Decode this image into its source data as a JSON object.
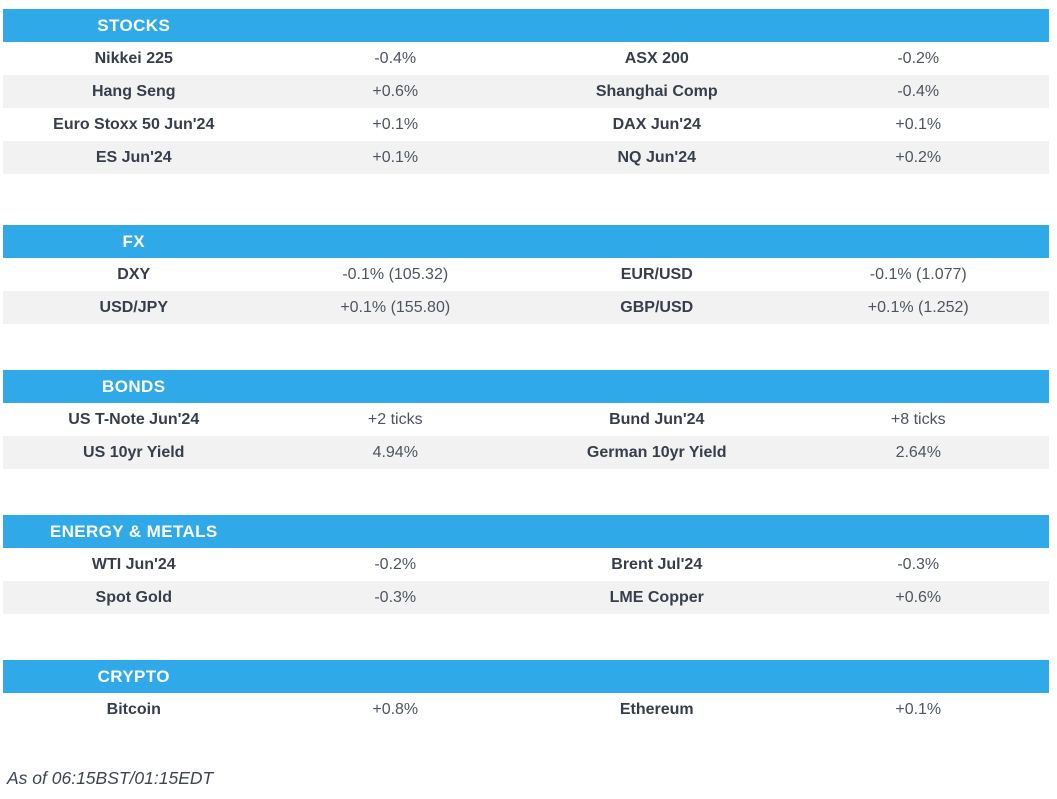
{
  "colors": {
    "header_bg": "#2FA9E8",
    "header_text": "#FFFFFF",
    "row_alt_bg": "#F2F2F2",
    "label_color": "#363D4B",
    "value_color": "#4D5460",
    "footer_color": "#3E4552"
  },
  "sections": [
    {
      "title": "STOCKS",
      "rows": [
        {
          "l1": "Nikkei 225",
          "v1": "-0.4%",
          "l2": "ASX 200",
          "v2": "-0.2%"
        },
        {
          "l1": "Hang Seng",
          "v1": "+0.6%",
          "l2": "Shanghai Comp",
          "v2": "-0.4%"
        },
        {
          "l1": "Euro Stoxx 50 Jun'24",
          "v1": "+0.1%",
          "l2": "DAX Jun'24",
          "v2": "+0.1%"
        },
        {
          "l1": "ES Jun'24",
          "v1": "+0.1%",
          "l2": "NQ Jun'24",
          "v2": "+0.2%"
        }
      ]
    },
    {
      "title": "FX",
      "rows": [
        {
          "l1": "DXY",
          "v1": "-0.1% (105.32)",
          "l2": "EUR/USD",
          "v2": "-0.1% (1.077)"
        },
        {
          "l1": "USD/JPY",
          "v1": "+0.1% (155.80)",
          "l2": "GBP/USD",
          "v2": "+0.1% (1.252)"
        }
      ]
    },
    {
      "title": "BONDS",
      "rows": [
        {
          "l1": "US T-Note Jun'24",
          "v1": "+2 ticks",
          "l2": "Bund Jun'24",
          "v2": "+8 ticks"
        },
        {
          "l1": "US 10yr Yield",
          "v1": "4.94%",
          "l2": "German 10yr Yield",
          "v2": "2.64%"
        }
      ]
    },
    {
      "title": "ENERGY & METALS",
      "rows": [
        {
          "l1": "WTI Jun'24",
          "v1": "-0.2%",
          "l2": "Brent Jul'24",
          "v2": "-0.3%"
        },
        {
          "l1": "Spot Gold",
          "v1": "-0.3%",
          "l2": "LME Copper",
          "v2": "+0.6%"
        }
      ]
    },
    {
      "title": "CRYPTO",
      "rows": [
        {
          "l1": "Bitcoin",
          "v1": "+0.8%",
          "l2": "Ethereum",
          "v2": "+0.1%"
        }
      ]
    }
  ],
  "footer": {
    "as_of": "As of 06:15BST/01:15EDT"
  }
}
